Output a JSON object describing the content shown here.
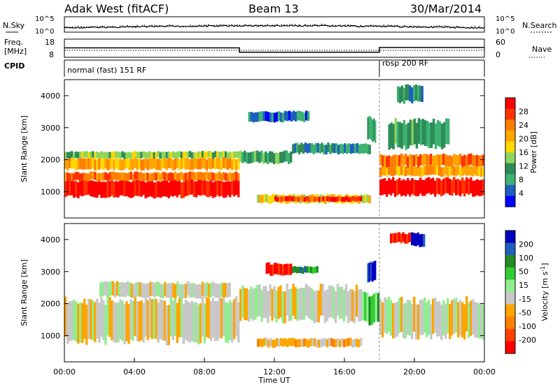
{
  "header": {
    "station": "Adak West (fitACF)",
    "beam": "Beam 13",
    "date": "30/Mar/2014"
  },
  "status_panels": {
    "nsky_label": "N.Sky",
    "nsearch_label": "N.Search",
    "freq_label_line1": "Freq.",
    "freq_label_line2": "[MHz]",
    "nave_label": "Nave",
    "cpid_label": "CPID",
    "noise_axis": [
      "10^5",
      "10^0"
    ],
    "freq_axis": [
      "18",
      "8"
    ],
    "nave_axis": [
      "60",
      "0"
    ],
    "cpid_segments": [
      {
        "label": "normal (fast) 151 RF",
        "start_hour": 0,
        "end_hour": 18
      },
      {
        "label": "rbsp 200 RF",
        "start_hour": 18,
        "end_hour": 24
      }
    ],
    "freq_trace": [
      {
        "start_hour": 0,
        "end_hour": 10,
        "mhz": 13.2
      },
      {
        "start_hour": 10,
        "end_hour": 18,
        "mhz": 10.8
      },
      {
        "start_hour": 18,
        "end_hour": 24,
        "mhz": 13.4
      }
    ]
  },
  "chart_data": [
    {
      "type": "heatmap",
      "name": "power",
      "ylabel": "Slant Range [km]",
      "xlabel": "Time UT",
      "x_range_hours": [
        0,
        24
      ],
      "ylim": [
        180,
        4500
      ],
      "yticks": [
        "1000",
        "2000",
        "3000",
        "4000"
      ],
      "colorbar": {
        "label": "Power [dB]",
        "ticks": [
          "28",
          "24",
          "20",
          "16",
          "12",
          "8",
          "4"
        ],
        "colors": [
          "#ff0000",
          "#ff3300",
          "#ff7f00",
          "#ffa500",
          "#ffd700",
          "#8dd55d",
          "#2e8b57",
          "#3cb371",
          "#1f5fbf",
          "#0000ff"
        ]
      },
      "bands": [
        {
          "t0": 0.0,
          "t1": 10.0,
          "r0": 850,
          "r1": 1350,
          "level": 0
        },
        {
          "t0": 0.0,
          "t1": 10.0,
          "r0": 1350,
          "r1": 1600,
          "level": 2
        },
        {
          "t0": 0.0,
          "t1": 10.0,
          "r0": 1700,
          "r1": 2050,
          "level": 3
        },
        {
          "t0": 0.0,
          "t1": 10.0,
          "r0": 2050,
          "r1": 2250,
          "level": 5
        },
        {
          "t0": 10.0,
          "t1": 13.0,
          "r0": 1900,
          "r1": 2250,
          "level": 6
        },
        {
          "t0": 13.0,
          "t1": 17.5,
          "r0": 2200,
          "r1": 2500,
          "level": 7
        },
        {
          "t0": 11.0,
          "t1": 17.5,
          "r0": 650,
          "r1": 900,
          "level": 4
        },
        {
          "t0": 12.0,
          "t1": 17.0,
          "r0": 700,
          "r1": 850,
          "level": 1
        },
        {
          "t0": 18.0,
          "t1": 24.0,
          "r0": 900,
          "r1": 1400,
          "level": 0
        },
        {
          "t0": 18.0,
          "t1": 24.0,
          "r0": 1500,
          "r1": 1800,
          "level": 3
        },
        {
          "t0": 18.0,
          "t1": 24.0,
          "r0": 1800,
          "r1": 2150,
          "level": 2
        },
        {
          "t0": 10.5,
          "t1": 14.0,
          "r0": 3200,
          "r1": 3500,
          "level": 8
        },
        {
          "t0": 17.3,
          "t1": 17.8,
          "r0": 2600,
          "r1": 3300,
          "level": 6
        },
        {
          "t0": 19.0,
          "t1": 20.5,
          "r0": 3800,
          "r1": 4300,
          "level": 7
        },
        {
          "t0": 18.5,
          "t1": 22.0,
          "r0": 2400,
          "r1": 3200,
          "level": 6
        }
      ]
    },
    {
      "type": "heatmap",
      "name": "velocity",
      "ylabel": "Slant Range [km]",
      "xlabel": "Time UT",
      "x_range_hours": [
        0,
        24
      ],
      "ylim": [
        180,
        4500
      ],
      "yticks": [
        "1000",
        "2000",
        "3000",
        "4000"
      ],
      "xticks": [
        "00:00",
        "04:00",
        "08:00",
        "12:00",
        "16:00",
        "20:00",
        "00:00"
      ],
      "colorbar": {
        "label": "Velocity [m s",
        "label_sup": "-1",
        "label_end": "]",
        "ticks": [
          "200",
          "100",
          "50",
          "15",
          "-15",
          "-50",
          "-100",
          "-200"
        ],
        "colors": [
          "#0000c0",
          "#1f5fbf",
          "#228b22",
          "#32cd32",
          "#90ee90",
          "#c8c8c8",
          "#ffa500",
          "#ff7f00",
          "#ff4000",
          "#ff0000"
        ]
      },
      "bands": [
        {
          "t0": 0.0,
          "t1": 10.0,
          "r0": 850,
          "r1": 2100,
          "level": 5
        },
        {
          "t0": 2.0,
          "t1": 9.5,
          "r0": 2200,
          "r1": 2650,
          "level": 5
        },
        {
          "t0": 10.0,
          "t1": 17.0,
          "r0": 1500,
          "r1": 2500,
          "level": 5
        },
        {
          "t0": 11.0,
          "t1": 17.0,
          "r0": 650,
          "r1": 900,
          "level": 6
        },
        {
          "t0": 11.5,
          "t1": 13.0,
          "r0": 2900,
          "r1": 3250,
          "level": 9
        },
        {
          "t0": 13.0,
          "t1": 14.5,
          "r0": 2950,
          "r1": 3150,
          "level": 2
        },
        {
          "t0": 17.0,
          "t1": 18.0,
          "r0": 1400,
          "r1": 2300,
          "level": 3
        },
        {
          "t0": 17.3,
          "t1": 17.8,
          "r0": 2700,
          "r1": 3300,
          "level": 0
        },
        {
          "t0": 18.0,
          "t1": 24.0,
          "r0": 1000,
          "r1": 2100,
          "level": 5
        },
        {
          "t0": 18.6,
          "t1": 20.0,
          "r0": 3900,
          "r1": 4200,
          "level": 9
        },
        {
          "t0": 19.8,
          "t1": 20.6,
          "r0": 3800,
          "r1": 4200,
          "level": 0
        }
      ]
    }
  ]
}
